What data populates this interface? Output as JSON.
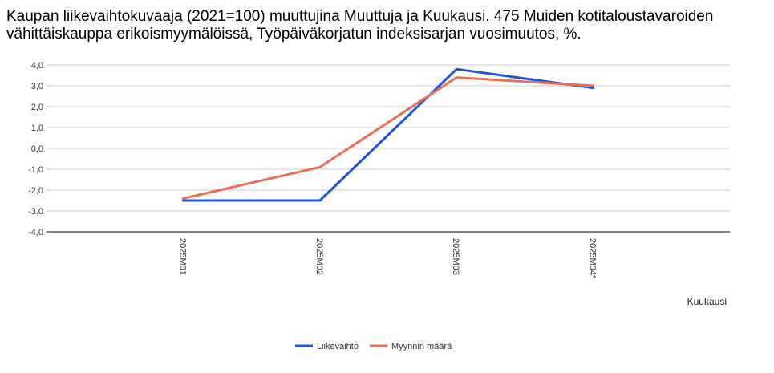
{
  "chart_data": {
    "type": "line",
    "title": "Kaupan liikevaihtokuvaaja (2021=100) muuttujina Muuttuja ja Kuukausi. 475 Muiden kotitaloustavaroiden vähittäiskauppa erikoismyymälöissä, Työpäiväkorjatun indeksisarjan vuosimuutos, %.",
    "xlabel": "Kuukausi",
    "ylabel": "",
    "categories": [
      "2025M01",
      "2025M02",
      "2025M03",
      "2025M04*"
    ],
    "ylim": [
      -4.0,
      4.0
    ],
    "yticks": [
      "4,0",
      "3,0",
      "2,0",
      "1,0",
      "0,0",
      "-1,0",
      "-2,0",
      "-3,0",
      "-4,0"
    ],
    "grid": true,
    "legend_position": "bottom",
    "series": [
      {
        "name": "Liikevaihto",
        "color": "#1f55d6",
        "values": [
          -2.5,
          -2.5,
          3.8,
          2.9
        ]
      },
      {
        "name": "Myynnin määrä",
        "color": "#e8705a",
        "values": [
          -2.4,
          -0.9,
          3.4,
          3.0
        ]
      }
    ]
  }
}
